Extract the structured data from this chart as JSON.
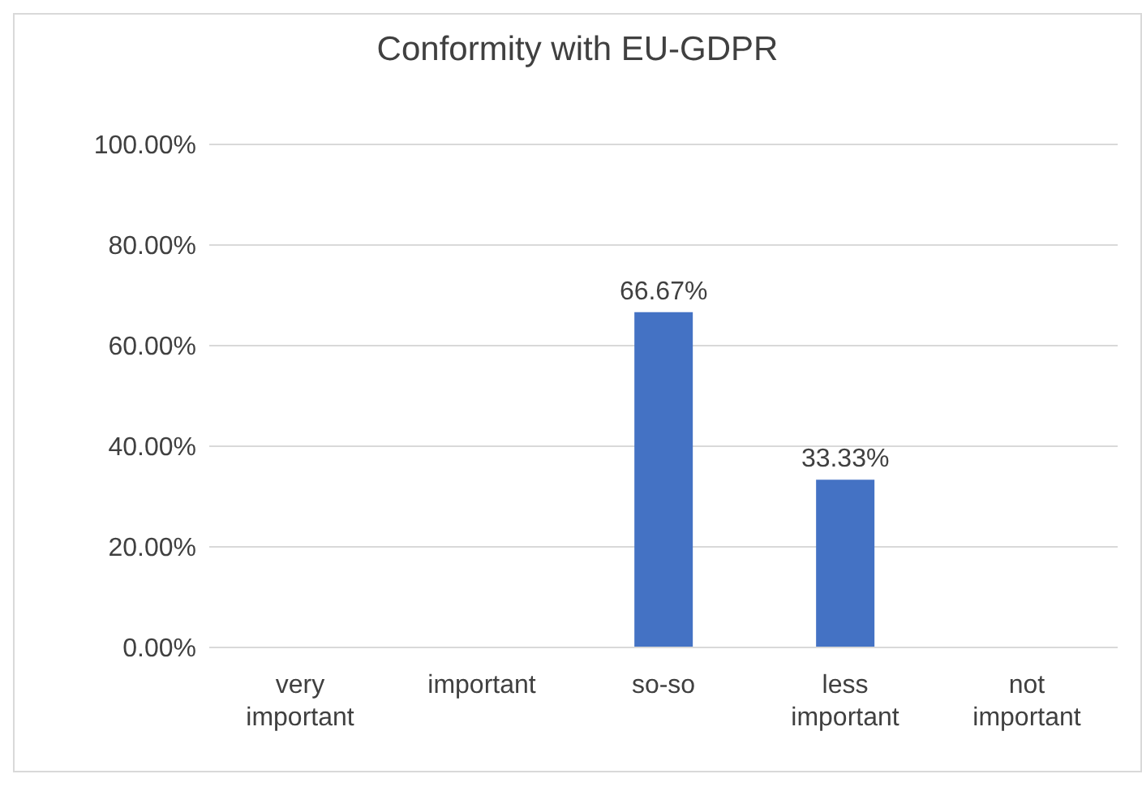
{
  "chart_data": {
    "type": "bar",
    "title": "Conformity with EU-GDPR",
    "categories": [
      "very important",
      "important",
      "so-so",
      "less important",
      "not important"
    ],
    "values": [
      0,
      0,
      66.67,
      33.33,
      0
    ],
    "value_labels": [
      null,
      null,
      "66.67%",
      "33.33%",
      null
    ],
    "color": "#4472c4",
    "ylim": [
      0,
      100
    ],
    "yticks": [
      {
        "value": 0,
        "label": "0.00%"
      },
      {
        "value": 20,
        "label": "20.00%"
      },
      {
        "value": 40,
        "label": "40.00%"
      },
      {
        "value": 60,
        "label": "60.00%"
      },
      {
        "value": 80,
        "label": "80.00%"
      },
      {
        "value": 100,
        "label": "100.00%"
      }
    ],
    "grid": "y",
    "legend": false
  }
}
